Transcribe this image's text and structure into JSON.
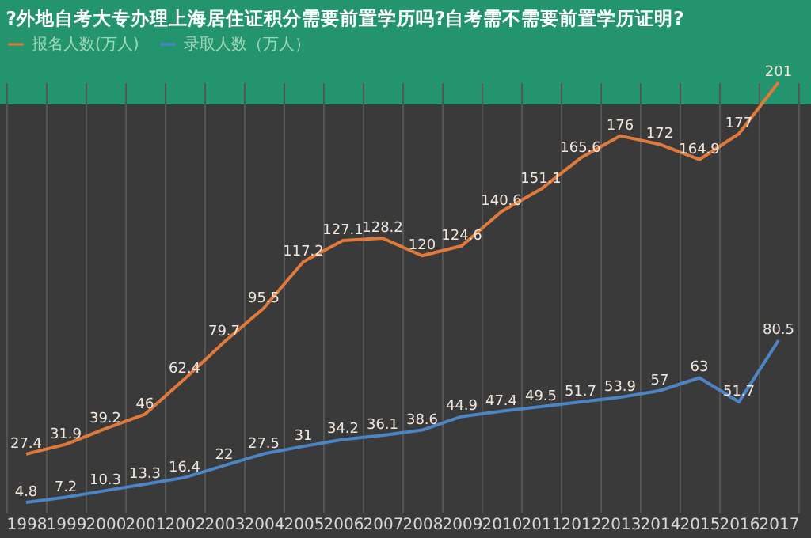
{
  "chart_data": {
    "type": "line",
    "title": "?外地自考大专办理上海居住证积分需要前置学历吗?自考需不需要前置学历证明?",
    "categories": [
      "1998",
      "1999",
      "2000",
      "2001",
      "2002",
      "2003",
      "2004",
      "2005",
      "2006",
      "2007",
      "2008",
      "2009",
      "2010",
      "2011",
      "2012",
      "2013",
      "2014",
      "2015",
      "2016",
      "2017"
    ],
    "series": [
      {
        "name": "报名人数(万人)",
        "color": "#e07a3c",
        "values": [
          27.4,
          31.9,
          39.2,
          46,
          62.4,
          79.7,
          95.5,
          117.2,
          127.1,
          128.2,
          120,
          124.6,
          140.6,
          151.1,
          165.6,
          176,
          172,
          164.9,
          177,
          201
        ]
      },
      {
        "name": "录取人数（万人）",
        "color": "#4d84c4",
        "values": [
          4.8,
          7.2,
          10.3,
          13.3,
          16.4,
          22,
          27.5,
          31,
          34.2,
          36.1,
          38.6,
          44.9,
          47.4,
          49.5,
          51.7,
          53.9,
          57,
          63,
          51.7,
          80.5
        ]
      }
    ],
    "data_labels": true,
    "grid": "x",
    "legend": "top",
    "marker": "none"
  }
}
